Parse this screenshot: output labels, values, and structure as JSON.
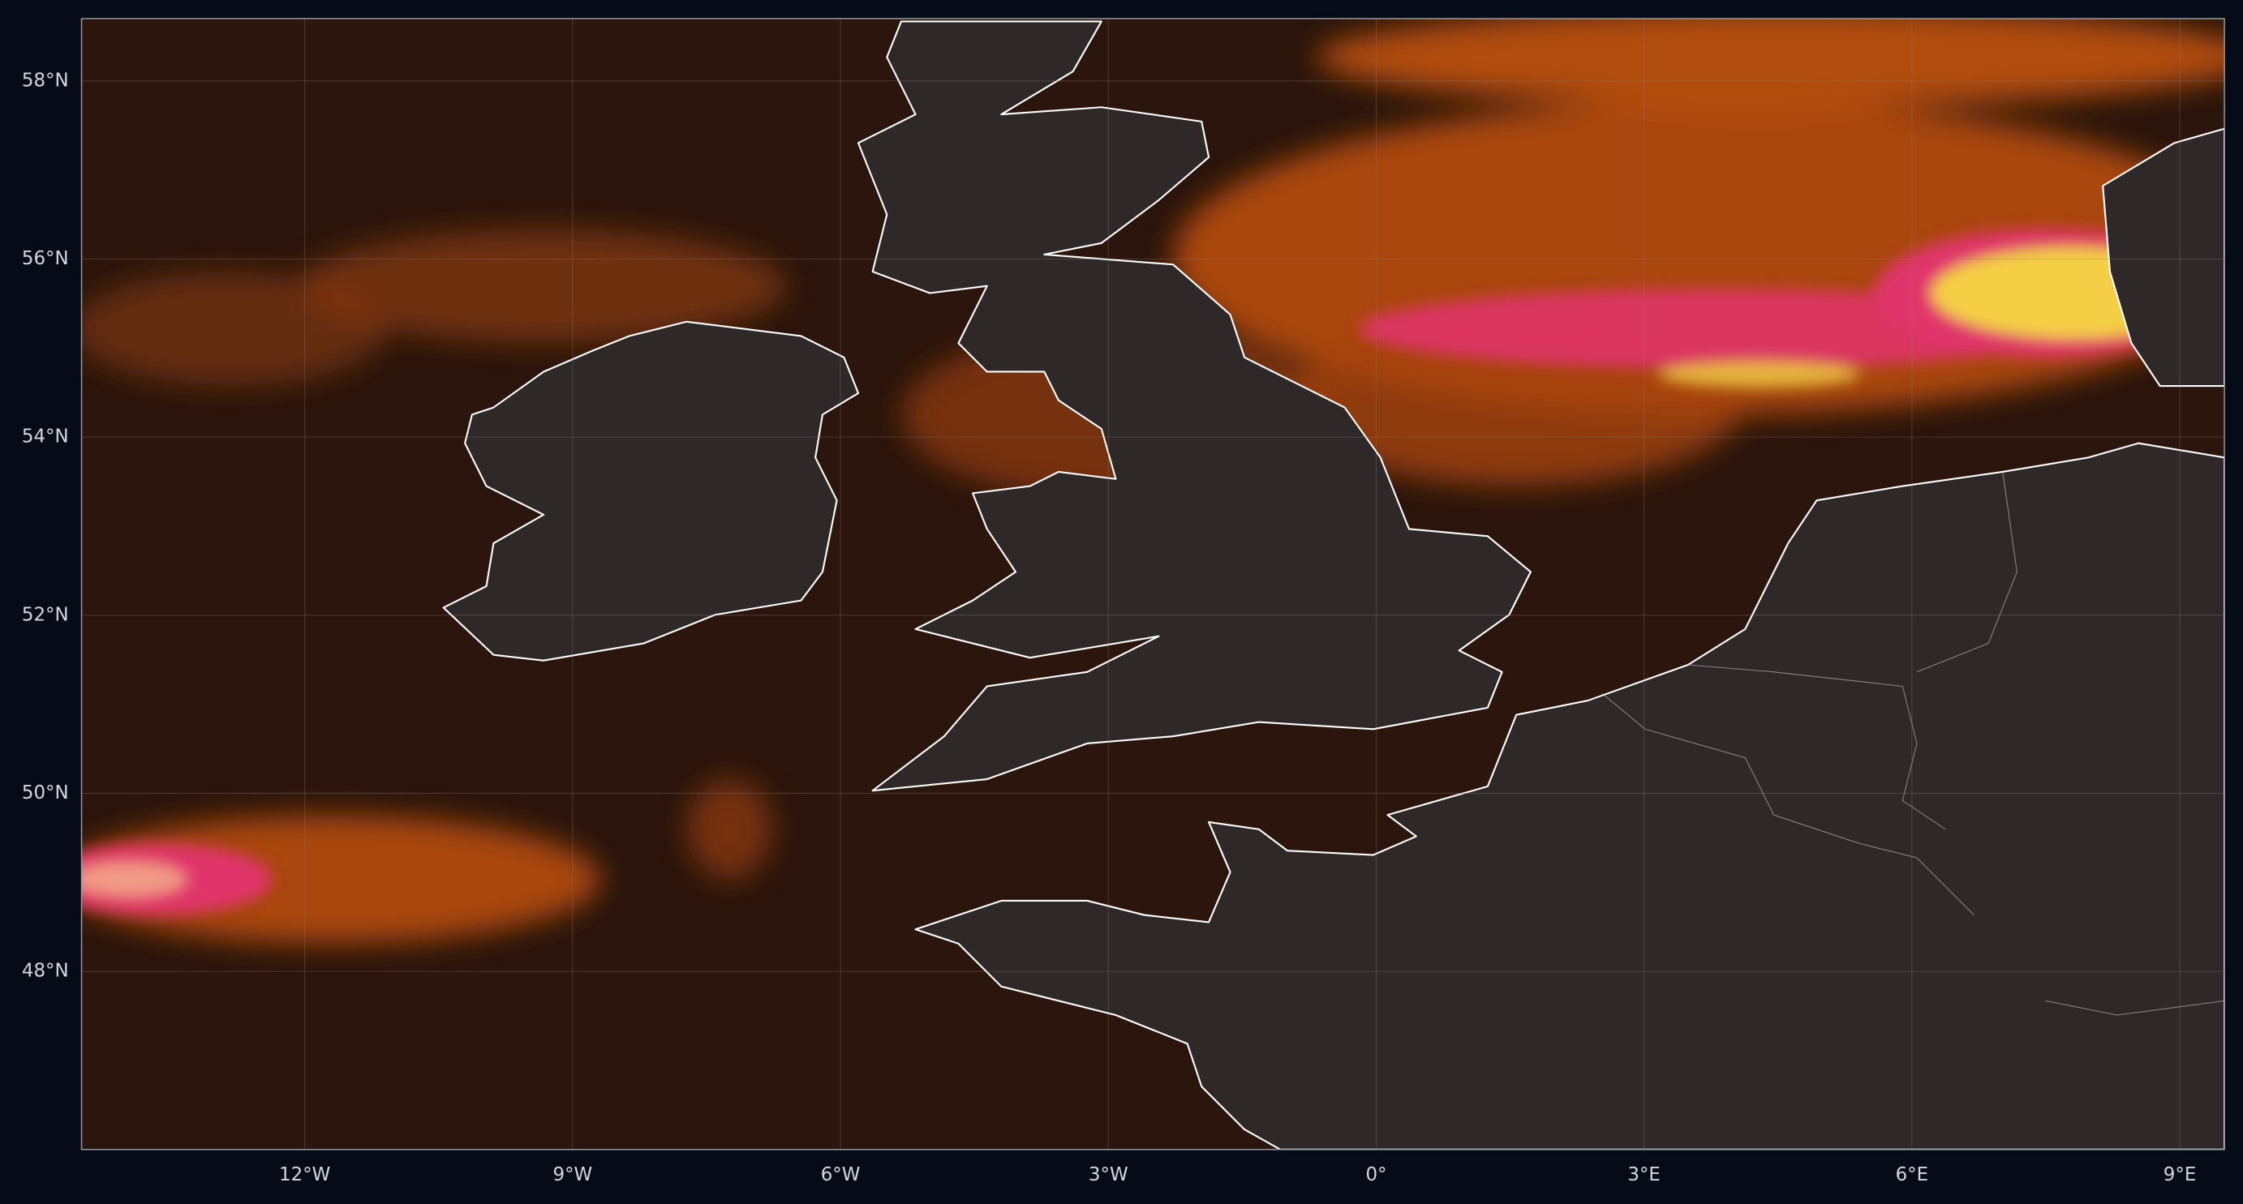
{
  "map": {
    "xlim": [
      -14.5,
      9.5
    ],
    "ylim": [
      46.0,
      58.7
    ],
    "grid": true,
    "lat_ticks": [
      {
        "value": 58,
        "label": "58°N"
      },
      {
        "value": 56,
        "label": "56°N"
      },
      {
        "value": 54,
        "label": "54°N"
      },
      {
        "value": 52,
        "label": "52°N"
      },
      {
        "value": 50,
        "label": "50°N"
      },
      {
        "value": 48,
        "label": "48°N"
      }
    ],
    "lon_ticks": [
      {
        "value": -12,
        "label": "12°W"
      },
      {
        "value": -9,
        "label": "9°W"
      },
      {
        "value": -6,
        "label": "6°W"
      },
      {
        "value": -3,
        "label": "3°W"
      },
      {
        "value": 0,
        "label": "0°"
      },
      {
        "value": 3,
        "label": "3°E"
      },
      {
        "value": 6,
        "label": "6°E"
      },
      {
        "value": 9,
        "label": "9°E"
      }
    ]
  }
}
